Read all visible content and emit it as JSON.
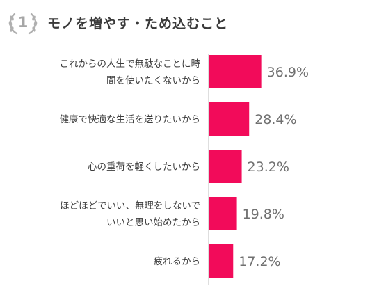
{
  "header": {
    "badge_number": "1",
    "title": "モノを増やす・ため込むこと"
  },
  "chart_data": {
    "type": "bar",
    "orientation": "horizontal",
    "title": "モノを増やす・ため込むこと",
    "categories": [
      [
        "これからの人生で無駄なことに時",
        "間を使いたくないから"
      ],
      [
        "健康で快適な生活を送りたいから"
      ],
      [
        "心の重荷を軽くしたいから"
      ],
      [
        "ほどほどでいい、無理をしないで",
        "いいと思い始めたから"
      ],
      [
        "疲れるから"
      ]
    ],
    "values": [
      36.9,
      28.4,
      23.2,
      19.8,
      17.2
    ],
    "value_labels": [
      "36.9%",
      "28.4%",
      "23.2%",
      "19.8%",
      "17.2%"
    ],
    "unit": "%",
    "xlim": [
      0,
      100
    ],
    "grid": false,
    "legend": "none",
    "colors": {
      "bar": "#f20b5a",
      "label_text": "#3d3d3d",
      "value_text": "#707070",
      "axis": "#c8c8c8",
      "badge": "#a6a6a6"
    }
  }
}
